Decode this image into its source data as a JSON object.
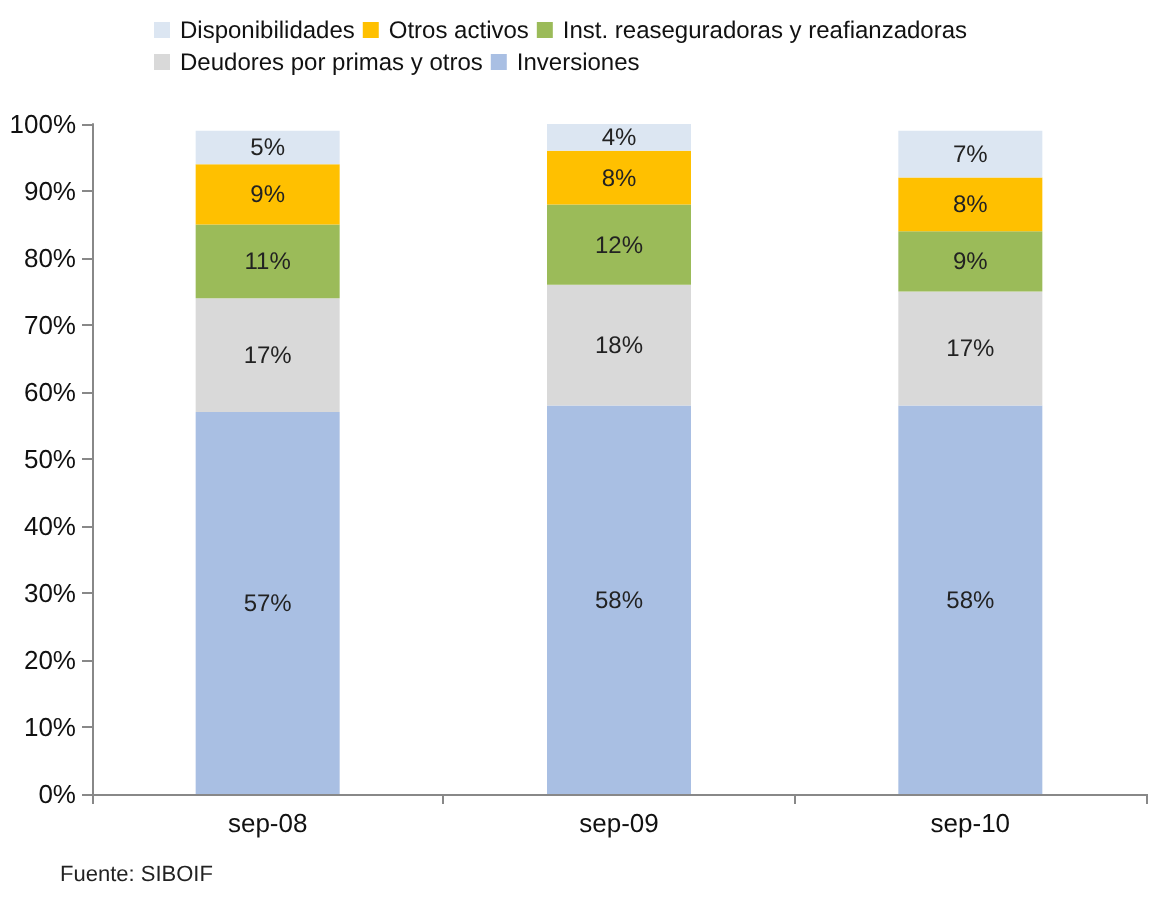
{
  "chart_data": {
    "type": "bar",
    "stacked": true,
    "categories": [
      "sep-08",
      "sep-09",
      "sep-10"
    ],
    "series": [
      {
        "name": "Inversiones",
        "color": "#a9bfe3",
        "values": [
          57,
          58,
          58
        ],
        "value_labels": [
          "57%",
          "58%",
          "58%"
        ]
      },
      {
        "name": "Deudores por primas y otros",
        "color": "#d9d9d9",
        "values": [
          17,
          18,
          17
        ],
        "value_labels": [
          "17%",
          "18%",
          "17%"
        ]
      },
      {
        "name": "Inst. reaseguradoras y reafianzadoras",
        "color": "#9bbb59",
        "values": [
          11,
          12,
          9
        ],
        "value_labels": [
          "11%",
          "12%",
          "9%"
        ]
      },
      {
        "name": "Otros activos",
        "color": "#ffc000",
        "values": [
          9,
          8,
          8
        ],
        "value_labels": [
          "9%",
          "8%",
          "8%"
        ]
      },
      {
        "name": "Disponibilidades",
        "color": "#dce6f2",
        "values": [
          5,
          4,
          7
        ],
        "value_labels": [
          "5%",
          "4%",
          "7%"
        ]
      }
    ],
    "ylim": [
      0,
      100
    ],
    "yticks": [
      {
        "value": 0,
        "label": "0%"
      },
      {
        "value": 10,
        "label": "10%"
      },
      {
        "value": 20,
        "label": "20%"
      },
      {
        "value": 30,
        "label": "30%"
      },
      {
        "value": 40,
        "label": "40%"
      },
      {
        "value": 50,
        "label": "50%"
      },
      {
        "value": 60,
        "label": "60%"
      },
      {
        "value": 70,
        "label": "70%"
      },
      {
        "value": 80,
        "label": "80%"
      },
      {
        "value": 90,
        "label": "90%"
      },
      {
        "value": 100,
        "label": "100%"
      }
    ],
    "grid": false,
    "legend": "top",
    "annotations": [
      "Fuente: SIBOIF"
    ]
  }
}
